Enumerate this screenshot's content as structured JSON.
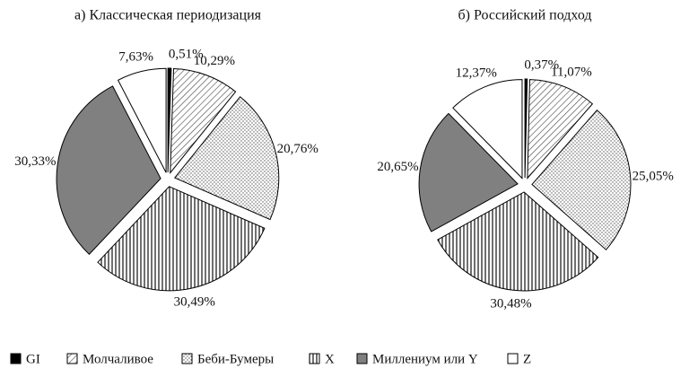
{
  "legend": {
    "categories": [
      "GI",
      "Молчаливое",
      "Беби-Бумеры",
      "X",
      "Миллениум или Y",
      "Z"
    ],
    "patterns": [
      "#000000",
      "hatch",
      "dots",
      "vertical",
      "#808080",
      "#ffffff"
    ]
  },
  "chart_data": [
    {
      "type": "pie",
      "title": "а) Классическая периодизация",
      "values": [
        0.51,
        10.29,
        20.76,
        30.49,
        30.33,
        7.63
      ],
      "value_labels": [
        "0,51%",
        "10,29%",
        "20,76%",
        "30,49%",
        "30,33%",
        "7,63%"
      ]
    },
    {
      "type": "pie",
      "title": "б) Российский подход",
      "values": [
        0.37,
        11.07,
        25.05,
        30.48,
        20.65,
        12.37
      ],
      "value_labels": [
        "0,37%",
        "11,07%",
        "25,05%",
        "30,48%",
        "20,65%",
        "12,37%"
      ]
    }
  ]
}
